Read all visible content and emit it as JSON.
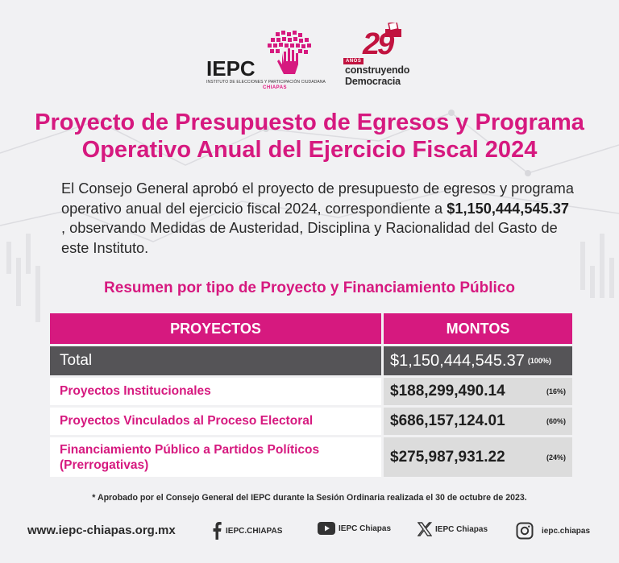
{
  "header": {
    "iepc_logo_text": "IEPC",
    "iepc_logo_subtitle": "INSTITUTO DE ELECCIONES Y PARTICIPACIÓN CIUDADANA",
    "iepc_logo_state": "CHIAPAS",
    "anniversary_number": "29",
    "anniversary_unit": "AÑOS",
    "anniversary_line1": "construyendo",
    "anniversary_line2": "Democracia"
  },
  "title": {
    "line1": "Proyecto de Presupuesto de Egresos y Programa",
    "line2": "Operativo Anual del Ejercicio Fiscal 2024"
  },
  "intro": {
    "part1": "El Consejo General aprobó el proyecto de presupuesto de egresos y programa operativo anual del  ejercicio fiscal 2024, correspondiente a ",
    "amount": "$1,150,444,545.37",
    "part2": "  , observando Medidas de Austeridad, Disciplina y Racionalidad del Gasto de este  Instituto."
  },
  "summary_title": "Resumen por tipo de Proyecto y Financiamiento Público",
  "table": {
    "header_projects": "PROYECTOS",
    "header_amounts": "MONTOS",
    "total": {
      "label": "Total",
      "amount": "$1,150,444,545.37",
      "percent": "(100%)"
    },
    "rows": [
      {
        "label": "Proyectos Institucionales",
        "amount": "$188,299,490.14",
        "percent": "(16%)"
      },
      {
        "label": "Proyectos Vinculados al Proceso Electoral",
        "amount": "$686,157,124.01",
        "percent": "(60%)"
      },
      {
        "label_line1": "Financiamiento Público a Partidos Políticos",
        "label_line2": "(Prerrogativas)",
        "amount": "$275,987,931.22",
        "percent": "(24%)"
      }
    ]
  },
  "footnote": "* Aprobado por el Consejo General del IEPC durante la Sesión Ordinaria realizada el 30 de octubre de 2023.",
  "footer": {
    "website": "www.iepc-chiapas.org.mx",
    "facebook": "IEPC.CHIAPAS",
    "youtube": "IEPC Chiapas",
    "x": "IEPC Chiapas",
    "instagram": "iepc.chiapas"
  },
  "colors": {
    "accent": "#d6197f",
    "anniversary": "#c1133f",
    "total_row": "#555457",
    "amount_cell": "#dcdcdc"
  },
  "icons": [
    "facebook-icon",
    "youtube-icon",
    "x-icon",
    "instagram-icon"
  ]
}
